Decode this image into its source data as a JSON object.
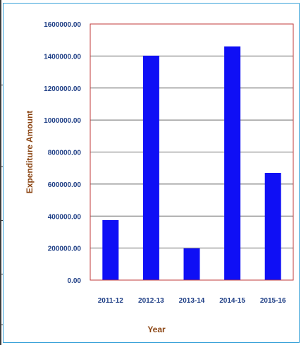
{
  "chart_data": {
    "type": "bar",
    "title": "",
    "xlabel": "Year",
    "ylabel": "Expenditure Amount",
    "categories": [
      "2011-12",
      "2012-13",
      "2013-14",
      "2014-15",
      "2015-16"
    ],
    "values": [
      375000,
      1402000,
      198000,
      1460000,
      670000
    ],
    "ylim": [
      0,
      1600000
    ],
    "yticks": [
      "0.00",
      "200000.00",
      "400000.00",
      "600000.00",
      "800000.00",
      "1000000.00",
      "1200000.00",
      "1400000.00",
      "1600000.00"
    ],
    "grid": true,
    "legend": "none",
    "colors": {
      "bar": "#0f0ff5",
      "plot_border": "#c03a3a",
      "grid": "#6b6b6b",
      "tick_text": "#1f3f86",
      "axis_title": "#8b4513",
      "frame": "#3ba3d9"
    }
  }
}
